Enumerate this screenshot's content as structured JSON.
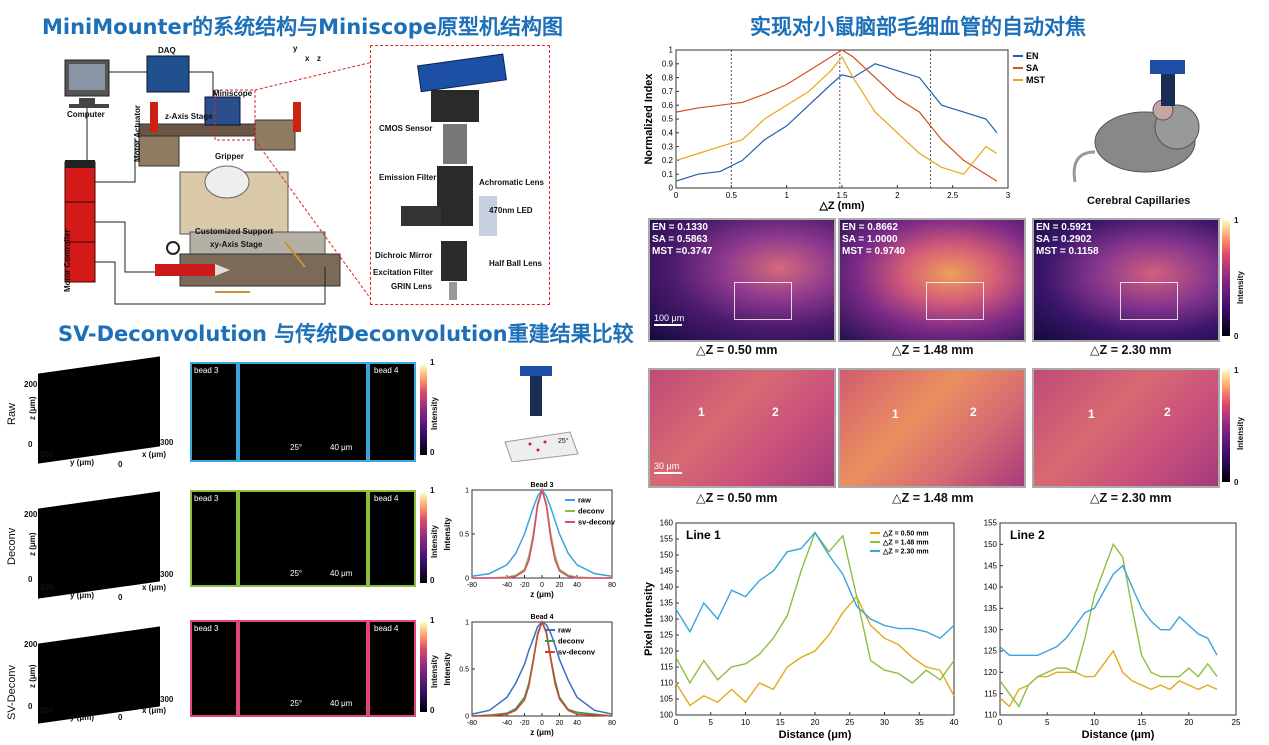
{
  "titles": {
    "t1": "MiniMounter的系统结构与Miniscope原型机结构图",
    "t2": "SV-Deconvolution 与传统Deconvolution重建结果比较",
    "t3": "实现对小鼠脑部毛细血管的自动对焦"
  },
  "setup": {
    "daq": "DAQ",
    "computer": "Computer",
    "miniscope": "Miniscope",
    "z_stage": "z-Axis Stage",
    "motor_actuator": "Motor Actuator",
    "gripper": "Gripper",
    "motor_controller": "Motor Controller",
    "customized_support": "Customized Support",
    "xy_stage": "xy-Axis Stage",
    "cmos": "CMOS Sensor",
    "emission": "Emission Filter",
    "achromatic": "Achromatic Lens",
    "dichroic": "Dichroic Mirror",
    "led": "470nm LED",
    "excitation": "Excitation Filter",
    "half_ball": "Half Ball Lens",
    "grin": "GRIN Lens",
    "axis_y": "y",
    "axis_x": "x",
    "axis_z": "z"
  },
  "deconv": {
    "rows": [
      "Raw",
      "Deconv",
      "SV-Deconv"
    ],
    "axis_z": "z (μm)",
    "axis_y": "y (μm)",
    "axis_x": "x  (μm)",
    "t200": "200",
    "t0": "0",
    "t300": "300",
    "bead3": "bead 3",
    "bead4": "bead 4",
    "angle": "25°",
    "scale": "40 μm",
    "intensity": "Intensity",
    "c1": "1",
    "c0": "0",
    "small_z": "z",
    "small_y": "y",
    "slope": "25°"
  },
  "chart_data": [
    {
      "type": "line",
      "title": "Bead 3",
      "xlabel": "z (μm)",
      "ylabel": "Intensity",
      "xlim": [
        -80,
        80
      ],
      "ylim": [
        0,
        1
      ],
      "x": [
        -80,
        -60,
        -40,
        -30,
        -20,
        -15,
        -10,
        -5,
        0,
        5,
        10,
        15,
        20,
        30,
        40,
        60,
        80
      ],
      "series": [
        {
          "name": "raw",
          "color": "#3aa4dc",
          "values": [
            0.02,
            0.05,
            0.15,
            0.28,
            0.5,
            0.65,
            0.8,
            0.93,
            1.0,
            0.93,
            0.8,
            0.65,
            0.5,
            0.28,
            0.15,
            0.05,
            0.02
          ]
        },
        {
          "name": "deconv",
          "color": "#8cbf3f",
          "values": [
            0.0,
            0.0,
            0.01,
            0.03,
            0.1,
            0.25,
            0.5,
            0.85,
            1.0,
            0.85,
            0.5,
            0.25,
            0.1,
            0.03,
            0.01,
            0.0,
            0.0
          ]
        },
        {
          "name": "sv-deconv",
          "color": "#e0457b",
          "values": [
            0.0,
            0.0,
            0.0,
            0.02,
            0.08,
            0.2,
            0.45,
            0.82,
            1.0,
            0.82,
            0.45,
            0.2,
            0.08,
            0.02,
            0.0,
            0.0,
            0.0
          ]
        }
      ]
    },
    {
      "type": "line",
      "title": "Bead 4",
      "xlabel": "z (μm)",
      "ylabel": "Intensity",
      "xlim": [
        -80,
        80
      ],
      "ylim": [
        0,
        1
      ],
      "x": [
        -80,
        -60,
        -40,
        -30,
        -20,
        -15,
        -10,
        -5,
        0,
        5,
        10,
        15,
        20,
        30,
        40,
        60,
        80
      ],
      "series": [
        {
          "name": "raw",
          "color": "#3a6fc4",
          "values": [
            0.02,
            0.06,
            0.2,
            0.35,
            0.55,
            0.7,
            0.82,
            0.95,
            1.0,
            0.97,
            0.88,
            0.75,
            0.6,
            0.38,
            0.2,
            0.06,
            0.02
          ]
        },
        {
          "name": "deconv",
          "color": "#3b9a5b",
          "values": [
            0.0,
            0.01,
            0.03,
            0.08,
            0.2,
            0.35,
            0.6,
            0.88,
            1.0,
            0.9,
            0.62,
            0.38,
            0.2,
            0.07,
            0.04,
            0.02,
            0.0
          ]
        },
        {
          "name": "sv-deconv",
          "color": "#d0452e",
          "values": [
            0.0,
            0.0,
            0.02,
            0.06,
            0.17,
            0.32,
            0.58,
            0.86,
            1.0,
            0.88,
            0.6,
            0.34,
            0.18,
            0.06,
            0.02,
            0.01,
            0.0
          ]
        }
      ]
    },
    {
      "type": "line",
      "title": "",
      "xlabel": "△Z (mm)",
      "ylabel": "Normalized Index",
      "xlim": [
        0,
        3
      ],
      "ylim": [
        0,
        1
      ],
      "x": [
        0,
        0.2,
        0.4,
        0.6,
        0.8,
        1.0,
        1.2,
        1.4,
        1.5,
        1.6,
        1.8,
        2.0,
        2.2,
        2.4,
        2.6,
        2.8,
        2.9
      ],
      "series": [
        {
          "name": "EN",
          "color": "#1f5fb0",
          "values": [
            0.05,
            0.1,
            0.12,
            0.2,
            0.35,
            0.45,
            0.6,
            0.75,
            0.82,
            0.8,
            0.9,
            0.85,
            0.8,
            0.6,
            0.55,
            0.5,
            0.4
          ]
        },
        {
          "name": "SA",
          "color": "#d2501e",
          "values": [
            0.55,
            0.58,
            0.6,
            0.62,
            0.68,
            0.75,
            0.85,
            0.95,
            1.0,
            0.95,
            0.8,
            0.65,
            0.55,
            0.35,
            0.2,
            0.1,
            0.05
          ]
        },
        {
          "name": "MST",
          "color": "#e6a817",
          "values": [
            0.2,
            0.25,
            0.3,
            0.35,
            0.5,
            0.6,
            0.7,
            0.85,
            0.95,
            0.8,
            0.55,
            0.4,
            0.25,
            0.15,
            0.1,
            0.3,
            0.25
          ]
        }
      ],
      "vlines": [
        0.5,
        1.48,
        2.3
      ]
    },
    {
      "type": "line",
      "title": "Line 1",
      "xlabel": "Distance (μm)",
      "ylabel": "Pixel Intensity",
      "xlim": [
        0,
        40
      ],
      "ylim": [
        100,
        160
      ],
      "x": [
        0,
        2,
        4,
        6,
        8,
        10,
        12,
        14,
        16,
        18,
        20,
        22,
        24,
        26,
        28,
        30,
        32,
        34,
        36,
        38,
        40
      ],
      "series": [
        {
          "name": "△Z = 0.50 mm",
          "color": "#e6a817",
          "values": [
            110,
            103,
            106,
            104,
            108,
            104,
            110,
            108,
            115,
            118,
            120,
            125,
            132,
            137,
            128,
            124,
            122,
            118,
            115,
            114,
            106
          ]
        },
        {
          "name": "△Z = 1.48 mm",
          "color": "#8cbf3f",
          "values": [
            118,
            110,
            117,
            111,
            115,
            116,
            119,
            124,
            131,
            145,
            157,
            151,
            156,
            137,
            117,
            114,
            113,
            110,
            114,
            111,
            117
          ]
        },
        {
          "name": "△Z = 2.30 mm",
          "color": "#3aa4dc",
          "values": [
            133,
            126,
            135,
            130,
            139,
            137,
            142,
            145,
            151,
            152,
            157,
            150,
            144,
            134,
            130,
            128,
            127,
            127,
            126,
            124,
            128
          ]
        }
      ]
    },
    {
      "type": "line",
      "title": "Line 2",
      "xlabel": "Distance (μm)",
      "ylabel": "",
      "xlim": [
        0,
        25
      ],
      "ylim": [
        110,
        155
      ],
      "x": [
        0,
        1,
        2,
        3,
        4,
        5,
        6,
        7,
        8,
        9,
        10,
        11,
        12,
        13,
        14,
        15,
        16,
        17,
        18,
        19,
        20,
        21,
        22,
        23
      ],
      "series": [
        {
          "name": "△Z = 0.50 mm",
          "color": "#e6a817",
          "values": [
            114,
            112,
            116,
            117,
            119,
            119,
            120,
            120,
            120,
            119,
            119,
            122,
            125,
            120,
            118,
            117,
            116,
            117,
            116,
            118,
            117,
            116,
            117,
            116
          ]
        },
        {
          "name": "△Z = 1.48 mm",
          "color": "#8cbf3f",
          "values": [
            118,
            115,
            112,
            117,
            119,
            120,
            121,
            121,
            120,
            128,
            138,
            144,
            150,
            147,
            135,
            124,
            120,
            119,
            119,
            119,
            121,
            119,
            122,
            119
          ]
        },
        {
          "name": "△Z = 2.30 mm",
          "color": "#3aa4dc",
          "values": [
            126,
            124,
            124,
            124,
            124,
            125,
            126,
            128,
            131,
            134,
            135,
            139,
            143,
            145,
            140,
            135,
            132,
            130,
            130,
            133,
            131,
            129,
            128,
            124
          ]
        }
      ]
    }
  ],
  "autofocus": {
    "cerebral": "Cerebral Capillaries",
    "intensity": "Intensity",
    "c1": "1",
    "c0": "0",
    "scale1": "100 μm",
    "scale2": "30 μm",
    "captions": [
      "△Z = 0.50 mm",
      "△Z = 1.48 mm",
      "△Z = 2.30 mm"
    ],
    "metrics": [
      "EN = 0.1330\nSA = 0.5863\nMST =0.3747",
      "EN = 0.8662\nSA = 1.0000\nMST = 0.9740",
      "EN = 0.5921\nSA = 0.2902\nMST = 0.1158"
    ],
    "line1": "1",
    "line2": "2"
  }
}
